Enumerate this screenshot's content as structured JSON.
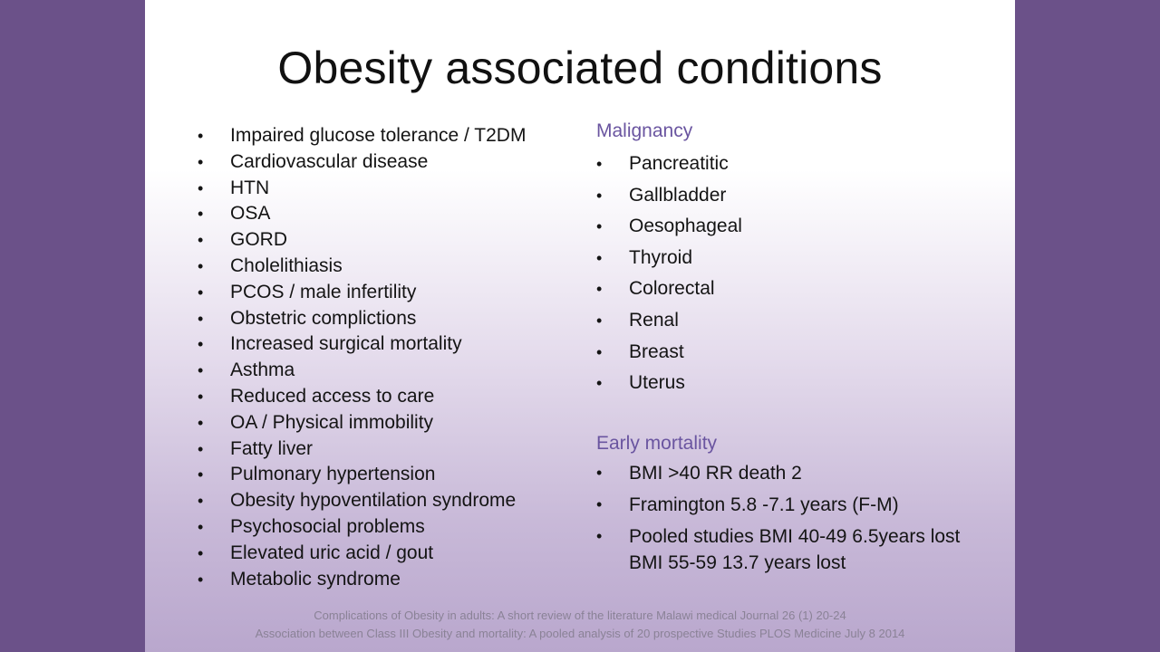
{
  "slide": {
    "title": "Obesity associated conditions",
    "left_items": [
      "Impaired glucose tolerance / T2DM",
      "Cardiovascular disease",
      "HTN",
      "OSA",
      "GORD",
      "Cholelithiasis",
      "PCOS / male infertility",
      "Obstetric complictions",
      "Increased surgical mortality",
      "Asthma",
      "Reduced access to care",
      "OA / Physical immobility",
      "Fatty liver",
      "Pulmonary hypertension",
      "Obesity hypoventilation syndrome",
      "Psychosocial problems",
      "Elevated uric acid / gout",
      "Metabolic syndrome"
    ],
    "malignancy": {
      "heading": "Malignancy",
      "items": [
        "Pancreatitic",
        "Gallbladder",
        "Oesophageal",
        "Thyroid",
        "Colorectal",
        "Renal",
        "Breast",
        "Uterus"
      ]
    },
    "early_mortality": {
      "heading": "Early mortality",
      "items": [
        {
          "line1": "BMI >40 RR death 2",
          "line2": ""
        },
        {
          "line1": "Framington 5.8 -7.1 years (F-M)",
          "line2": ""
        },
        {
          "line1": "Pooled studies BMI 40-49 6.5years lost",
          "line2": "BMI 55-59 13.7 years lost"
        }
      ]
    },
    "bullet_glyph": "•",
    "references": [
      "Complications of Obesity in adults: A short review of the literature Malawi medical Journal 26 (1) 20-24",
      "Association between Class III Obesity and mortality: A pooled analysis of 20 prospective Studies PLOS Medicine July 8 2014"
    ],
    "colors": {
      "background": "#6b5189",
      "heading_accent": "#6a55a0",
      "reference_text": "#8a8296"
    }
  }
}
